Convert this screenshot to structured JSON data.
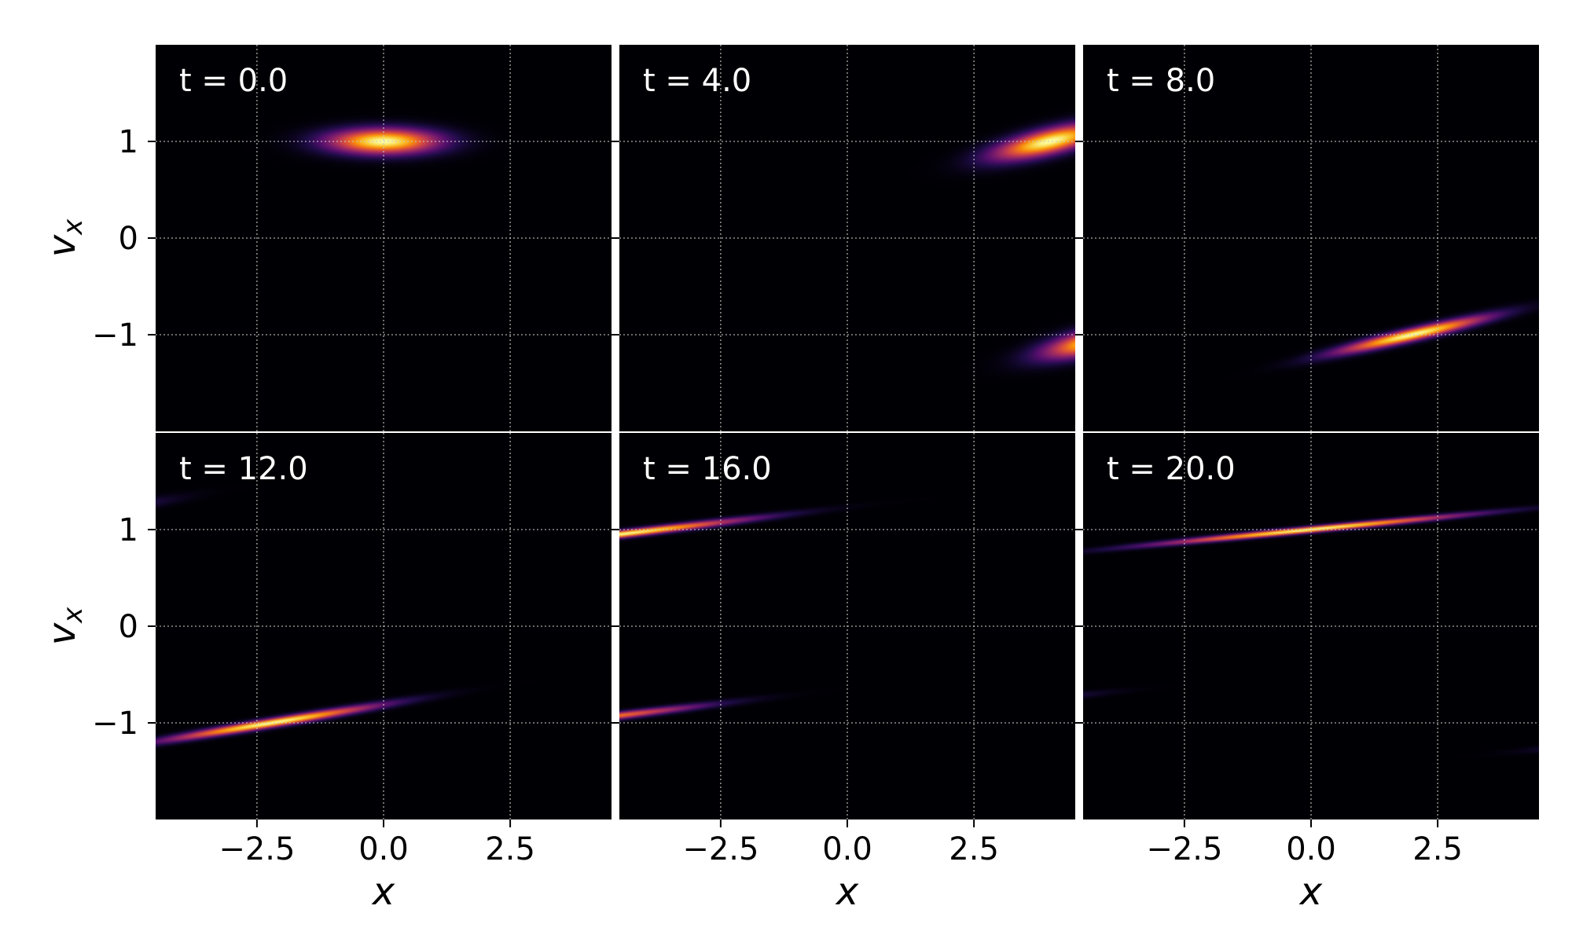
{
  "chart_data": {
    "type": "heatmap",
    "layout": {
      "rows": 2,
      "cols": 3,
      "sharex": true,
      "sharey": true
    },
    "xlabel": "x",
    "ylabel": "v",
    "ylabel_subscript": "x",
    "xlim": [
      -4.5,
      4.5
    ],
    "ylim": [
      -2.0,
      2.0
    ],
    "xticks": [
      -2.5,
      0.0,
      2.5
    ],
    "xtick_labels": [
      "−2.5",
      "0.0",
      "2.5"
    ],
    "yticks": [
      1,
      0,
      -1
    ],
    "ytick_labels": [
      "1",
      "0",
      "−1"
    ],
    "grid": true,
    "colormap": "inferno",
    "colors": {
      "background": "#000004",
      "grid": "#c8c8c8",
      "label_text": "#ffffff",
      "axis_text": "#000000"
    },
    "panels": [
      {
        "label": "t = 0.0",
        "blobs": [
          {
            "x0": 0.0,
            "y0": 1.0,
            "x_width": 0.75,
            "y_width": 0.09,
            "slope": 0.0,
            "amplitude": 1.0
          }
        ]
      },
      {
        "label": "t = 4.0",
        "blobs": [
          {
            "x0": 4.0,
            "y0": 1.0,
            "x_width": 0.75,
            "y_width": 0.09,
            "slope": 0.12,
            "amplitude": 1.0
          },
          {
            "x0": 5.0,
            "y0": -1.05,
            "x_width": 0.75,
            "y_width": 0.09,
            "slope": 0.12,
            "amplitude": 1.0
          }
        ]
      },
      {
        "label": "t = 8.0",
        "blobs": [
          {
            "x0": 2.0,
            "y0": -1.0,
            "x_width": 1.0,
            "y_width": 0.045,
            "slope": 0.12,
            "amplitude": 1.0
          }
        ]
      },
      {
        "label": "t = 12.0",
        "blobs": [
          {
            "x0": -2.2,
            "y0": -1.0,
            "x_width": 1.4,
            "y_width": 0.032,
            "slope": 0.085,
            "amplitude": 1.0
          },
          {
            "x0": -5.5,
            "y0": 1.2,
            "x_width": 0.9,
            "y_width": 0.04,
            "slope": 0.085,
            "amplitude": 0.2
          }
        ]
      },
      {
        "label": "t = 16.0",
        "blobs": [
          {
            "x0": -4.5,
            "y0": 0.95,
            "x_width": 1.7,
            "y_width": 0.027,
            "slope": 0.062,
            "amplitude": 1.0
          },
          {
            "x0": -4.9,
            "y0": -0.95,
            "x_width": 1.4,
            "y_width": 0.027,
            "slope": 0.062,
            "amplitude": 0.72
          }
        ]
      },
      {
        "label": "t = 20.0",
        "blobs": [
          {
            "x0": 0.0,
            "y0": 1.0,
            "x_width": 2.0,
            "y_width": 0.022,
            "slope": 0.05,
            "amplitude": 1.0
          },
          {
            "x0": -5.3,
            "y0": -0.75,
            "x_width": 0.9,
            "y_width": 0.025,
            "slope": 0.05,
            "amplitude": 0.14
          },
          {
            "x0": 5.6,
            "y0": -1.22,
            "x_width": 0.9,
            "y_width": 0.025,
            "slope": 0.05,
            "amplitude": 0.14
          }
        ]
      }
    ]
  }
}
